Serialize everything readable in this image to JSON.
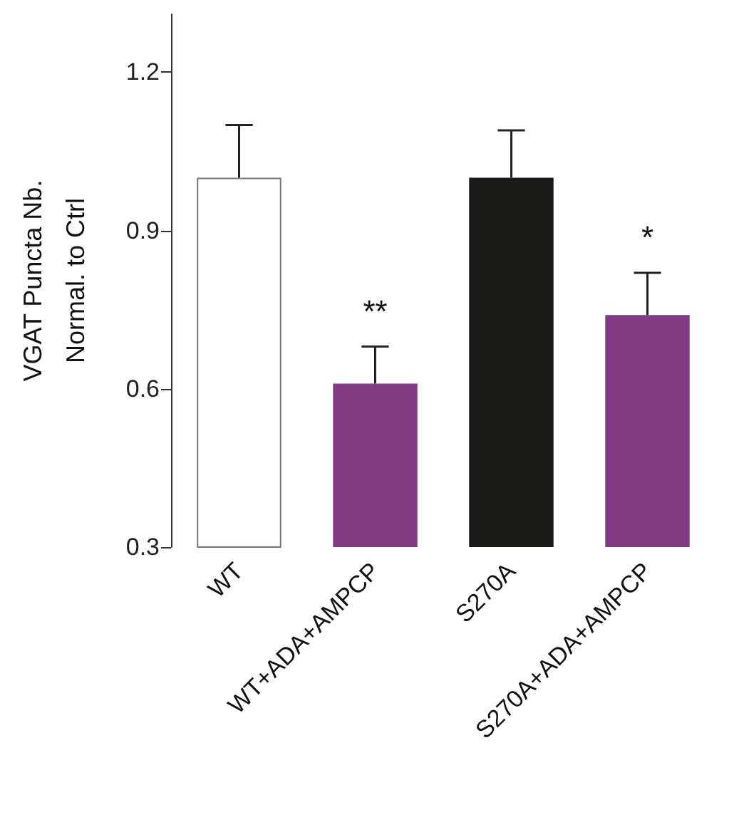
{
  "chart_data": {
    "type": "bar",
    "ylabel": "VGAT Puncta Nb.\nNormal. to Ctrl",
    "categories": [
      "WT",
      "WT+ADA+AMPCP",
      "S270A",
      "S270A+ADA+AMPCP"
    ],
    "values": [
      1.0,
      0.61,
      1.0,
      0.74
    ],
    "colors": [
      "#ffffff",
      "#823a84",
      "#1a1a18",
      "#823a84"
    ],
    "errors": [
      [
        1.0,
        1.1
      ],
      [
        0.61,
        0.68
      ],
      [
        1.0,
        1.09
      ],
      [
        0.74,
        0.82
      ]
    ],
    "ylim": [
      0.3,
      1.31
    ],
    "yticks": [
      0.3,
      0.6,
      0.9,
      1.2
    ],
    "grid": false,
    "annotations": [
      {
        "text": "**",
        "x": "WT+ADA+AMPCP",
        "y": 0.68
      },
      {
        "text": "*",
        "x": "S270A+ADA+AMPCP",
        "y": 0.82
      }
    ]
  }
}
